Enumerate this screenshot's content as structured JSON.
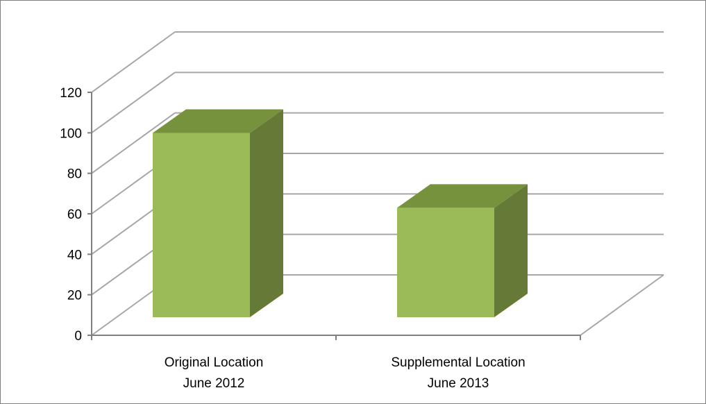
{
  "chart_data": {
    "type": "bar",
    "style": "3d-column",
    "categories": [
      [
        "Original Location",
        "June 2012"
      ],
      [
        "Supplemental Location",
        "June 2013"
      ]
    ],
    "values": [
      102,
      65
    ],
    "ylim": [
      0,
      120
    ],
    "yticks": [
      0,
      20,
      40,
      60,
      80,
      100,
      120
    ],
    "title": "",
    "xlabel": "",
    "ylabel": "",
    "grid": true,
    "legend": "none",
    "colors": {
      "bar_front": "#9bbb59",
      "bar_top": "#76923c",
      "bar_side": "#667a38",
      "gridline": "#a6a6a6",
      "axis": "#7f7f7f"
    }
  }
}
